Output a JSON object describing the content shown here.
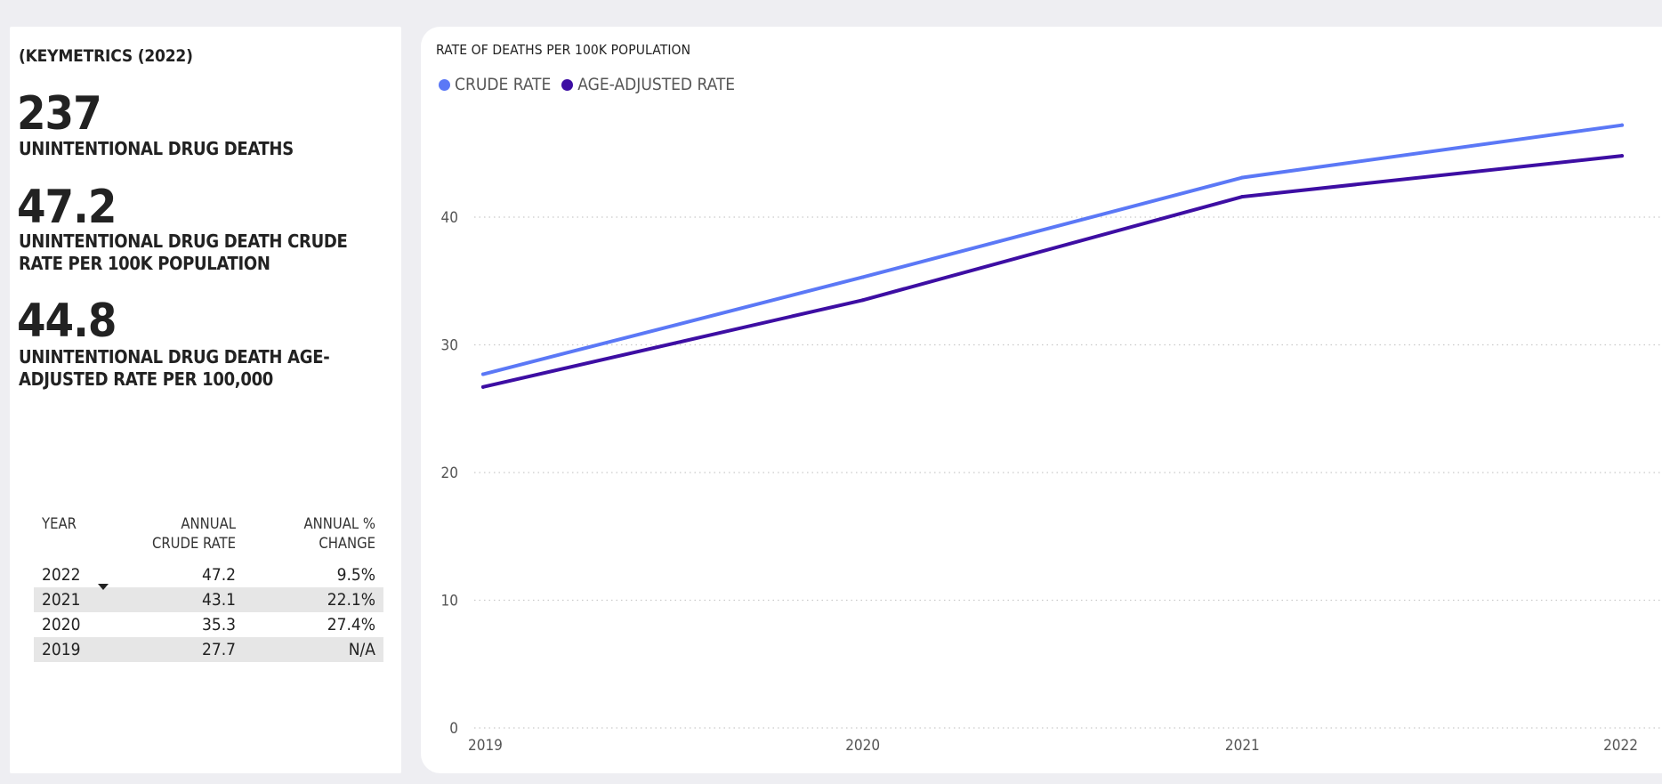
{
  "key_metrics": {
    "heading": "(KEYMETRICS (2022)",
    "deaths_value": "237",
    "deaths_label": "UNINTENTIONAL DRUG DEATHS",
    "crude_value": "47.2",
    "crude_label_1": "UNINTENTIONAL DRUG DEATH CRUDE",
    "crude_label_2": "RATE PER 100K POPULATION",
    "adjusted_value": "44.8",
    "adjusted_label_1": "UNINTENTIONAL DRUG DEATH AGE-",
    "adjusted_label_2": "ADJUSTED RATE PER 100,000"
  },
  "table": {
    "headers": {
      "year": "YEAR",
      "rate_1": "ANNUAL",
      "rate_2": "CRUDE RATE",
      "change_1": "ANNUAL %",
      "change_2": "CHANGE"
    },
    "rows": [
      {
        "year": "2022",
        "rate": "47.2",
        "change": "9.5%"
      },
      {
        "year": "2021",
        "rate": "43.1",
        "change": "22.1%"
      },
      {
        "year": "2020",
        "rate": "35.3",
        "change": "27.4%"
      },
      {
        "year": "2019",
        "rate": "27.7",
        "change": "N/A"
      }
    ]
  },
  "chart_data": {
    "type": "line",
    "title": "RATE OF DEATHS PER 100K POPULATION",
    "xlabel": "",
    "ylabel": "",
    "x": [
      "2019",
      "2020",
      "2021",
      "2022"
    ],
    "series": [
      {
        "name": "CRUDE RATE",
        "color": "#5b78f6",
        "values": [
          27.7,
          35.3,
          43.1,
          47.2
        ]
      },
      {
        "name": "AGE-ADJUSTED RATE",
        "color": "#3d0ea3",
        "values": [
          26.7,
          33.5,
          41.6,
          44.8
        ]
      }
    ],
    "ylim": [
      0,
      50
    ],
    "yticks": [
      0,
      10,
      20,
      30,
      40
    ],
    "grid": true,
    "legend": "top-left"
  }
}
